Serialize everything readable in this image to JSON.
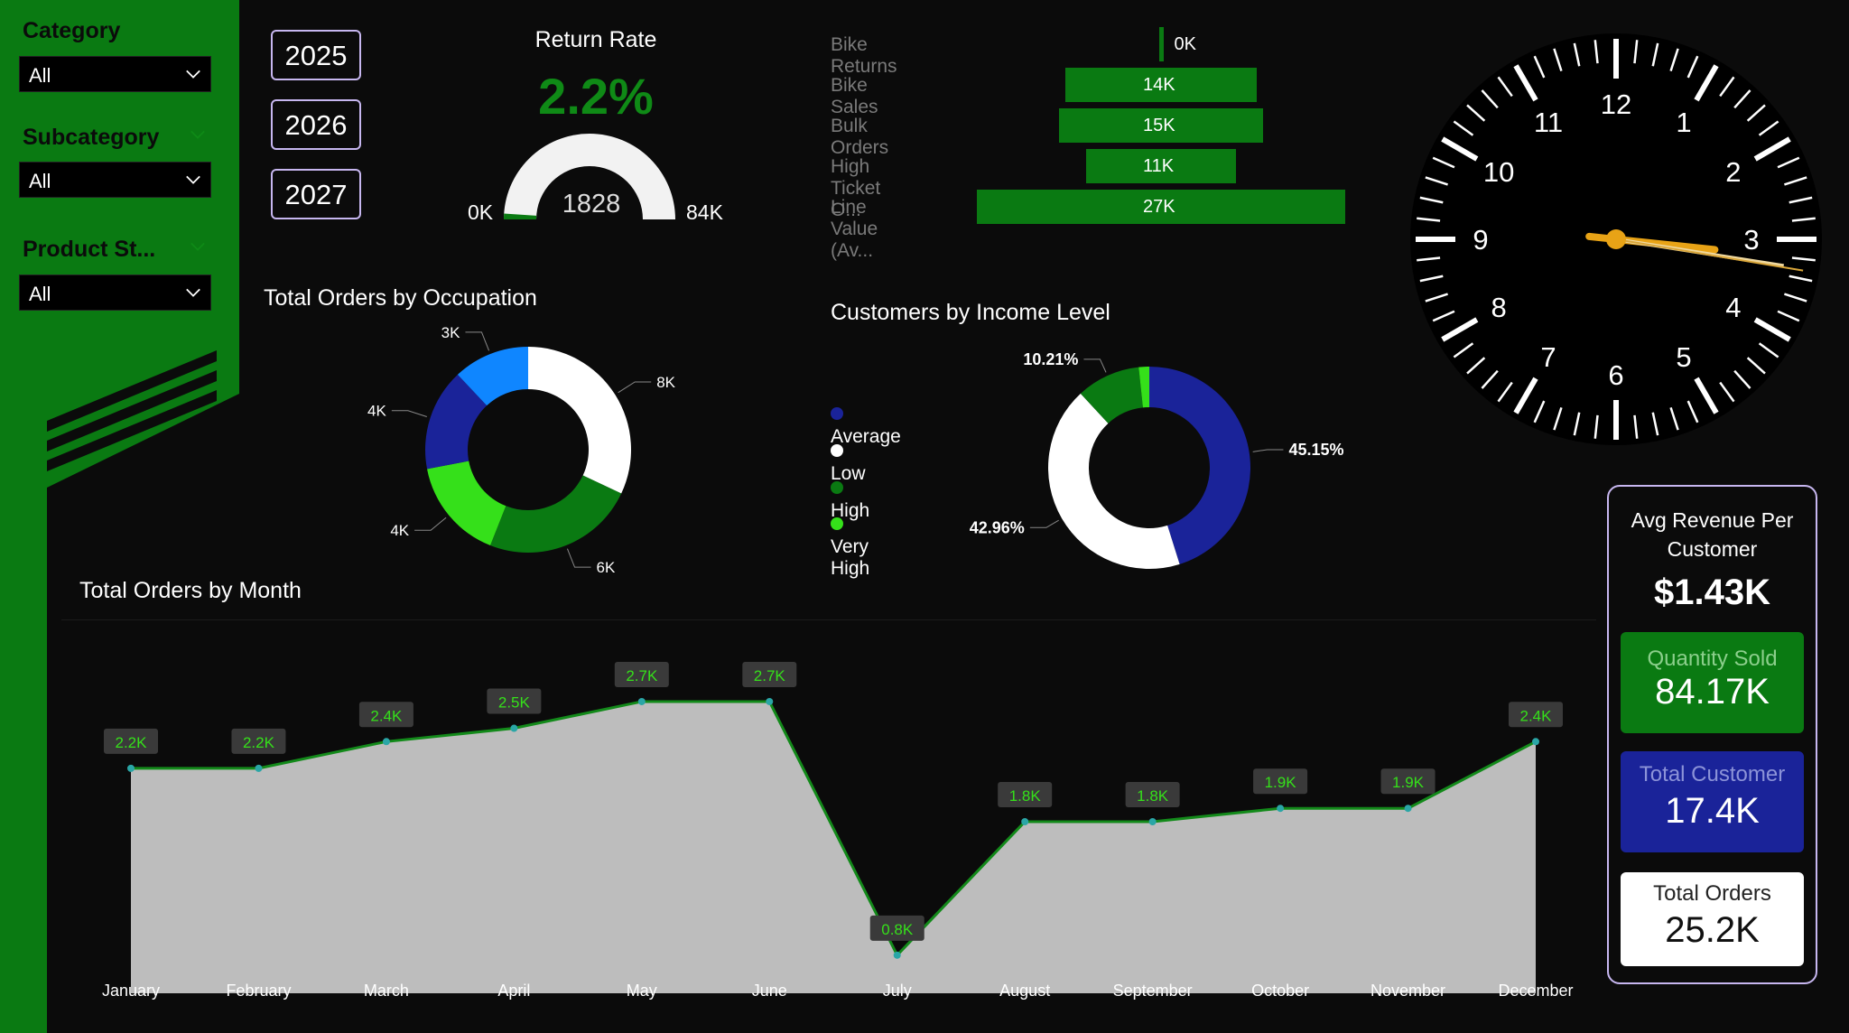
{
  "filters": {
    "category": {
      "label": "Category",
      "value": "All"
    },
    "subcategory": {
      "label": "Subcategory",
      "value": "All"
    },
    "product_status": {
      "label": "Product St...",
      "value": "All"
    }
  },
  "years": [
    "2025",
    "2026",
    "2027"
  ],
  "return_rate": {
    "title": "Return Rate",
    "value": "2.2%",
    "gauge_min": "0K",
    "gauge_max": "84K",
    "gauge_value": "1828",
    "gauge_fraction": 0.022
  },
  "colors": {
    "accent_green": "#0a7a12",
    "bright_green": "#35e01a",
    "dark_blue": "#1a2399",
    "light_blue": "#0f86ff"
  },
  "kpis": {
    "avg_revenue": {
      "label": "Avg Revenue Per Customer",
      "value": "$1.43K"
    },
    "quantity_sold": {
      "label": "Quantity Sold",
      "value": "84.17K"
    },
    "total_customer": {
      "label": "Total Customer",
      "value": "17.4K"
    },
    "total_orders": {
      "label": "Total Orders",
      "value": "25.2K"
    }
  },
  "clock": {
    "hours": [
      "12",
      "1",
      "2",
      "3",
      "4",
      "5",
      "6",
      "7",
      "8",
      "9",
      "10",
      "11"
    ]
  },
  "chart_data": [
    {
      "type": "bar",
      "orientation": "horizontal",
      "categories": [
        "Bike Returns",
        "Bike Sales",
        "Bulk Orders",
        "High Ticket O...",
        "Line Value (Av..."
      ],
      "values": [
        0.2,
        14,
        15,
        11,
        27
      ],
      "labels": [
        "0K",
        "14K",
        "15K",
        "11K",
        "27K"
      ]
    },
    {
      "type": "pie",
      "title": "Total Orders by Occupation",
      "values": [
        8,
        6,
        4,
        4,
        3
      ],
      "labels": [
        "8K",
        "6K",
        "4K",
        "4K",
        "3K"
      ],
      "colors": [
        "#ffffff",
        "#0a7a12",
        "#35e01a",
        "#1a2399",
        "#0f86ff"
      ]
    },
    {
      "type": "pie",
      "title": "Customers by Income Level",
      "series": [
        {
          "name": "Average",
          "value": 45.15,
          "label": "45.15%",
          "color": "#1a2399"
        },
        {
          "name": "Low",
          "value": 42.96,
          "label": "42.96%",
          "color": "#ffffff"
        },
        {
          "name": "High",
          "value": 10.21,
          "label": "10.21%",
          "color": "#0a7a12"
        },
        {
          "name": "Very High",
          "value": 1.68,
          "label": "",
          "color": "#35e01a"
        }
      ]
    },
    {
      "type": "area",
      "title": "Total Orders by Month",
      "categories": [
        "January",
        "February",
        "March",
        "April",
        "May",
        "June",
        "July",
        "August",
        "September",
        "October",
        "November",
        "December"
      ],
      "values": [
        2.2,
        2.2,
        2.4,
        2.5,
        2.7,
        2.7,
        0.8,
        1.8,
        1.8,
        1.9,
        1.9,
        2.4
      ],
      "labels": [
        "2.2K",
        "2.2K",
        "2.4K",
        "2.5K",
        "2.7K",
        "2.7K",
        "0.8K",
        "1.8K",
        "1.8K",
        "1.9K",
        "1.9K",
        "2.4K"
      ],
      "ylim": [
        0.65,
        2.95
      ]
    }
  ]
}
